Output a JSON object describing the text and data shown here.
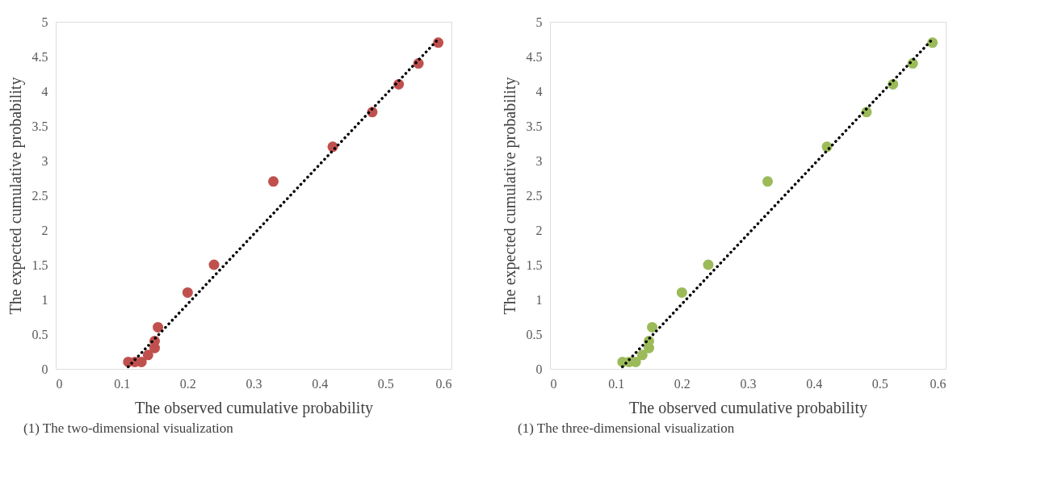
{
  "chart_data": [
    {
      "type": "scatter",
      "xlabel": "The observed cumulative probability",
      "ylabel": "The expected cumulative probability",
      "annotations": [
        "(1) The two-dimensional visualization"
      ],
      "xlim": [
        0,
        0.6
      ],
      "xticks": [
        0,
        0.1,
        0.2,
        0.3,
        0.4,
        0.5,
        0.6
      ],
      "ylim": [
        0,
        5
      ],
      "yticks": [
        0,
        0.5,
        1,
        1.5,
        2,
        2.5,
        3,
        3.5,
        4,
        4.5,
        5
      ],
      "grid": false,
      "series": [
        {
          "color": "#c0504d",
          "marker": "circle",
          "x": [
            0.11,
            0.12,
            0.13,
            0.14,
            0.15,
            0.15,
            0.155,
            0.2,
            0.24,
            0.33,
            0.42,
            0.48,
            0.52,
            0.55,
            0.58
          ],
          "values": [
            0.1,
            0.1,
            0.1,
            0.2,
            0.3,
            0.4,
            0.6,
            1.1,
            1.5,
            2.7,
            3.2,
            3.7,
            4.1,
            4.4,
            4.7
          ]
        },
        {
          "type": "line",
          "color": "#000000",
          "line_style": "dotted",
          "x": [
            0.11,
            0.58
          ],
          "values": [
            0.03,
            4.75
          ]
        }
      ]
    },
    {
      "type": "scatter",
      "xlabel": "The observed cumulative probability",
      "ylabel": "The expected cumulative probability",
      "annotations": [
        "(1) The three-dimensional visualization"
      ],
      "xlim": [
        0,
        0.6
      ],
      "xticks": [
        0,
        0.1,
        0.2,
        0.3,
        0.4,
        0.5,
        0.6
      ],
      "ylim": [
        0,
        5
      ],
      "yticks": [
        0,
        0.5,
        1,
        1.5,
        2,
        2.5,
        3,
        3.5,
        4,
        4.5,
        5
      ],
      "grid": false,
      "series": [
        {
          "color": "#9bbb59",
          "marker": "circle",
          "x": [
            0.11,
            0.12,
            0.13,
            0.14,
            0.15,
            0.15,
            0.155,
            0.2,
            0.24,
            0.33,
            0.42,
            0.48,
            0.52,
            0.55,
            0.58
          ],
          "values": [
            0.1,
            0.1,
            0.1,
            0.2,
            0.3,
            0.4,
            0.6,
            1.1,
            1.5,
            2.7,
            3.2,
            3.7,
            4.1,
            4.4,
            4.7
          ]
        },
        {
          "type": "line",
          "color": "#000000",
          "line_style": "dotted",
          "x": [
            0.11,
            0.58
          ],
          "values": [
            0.03,
            4.75
          ]
        }
      ]
    }
  ]
}
